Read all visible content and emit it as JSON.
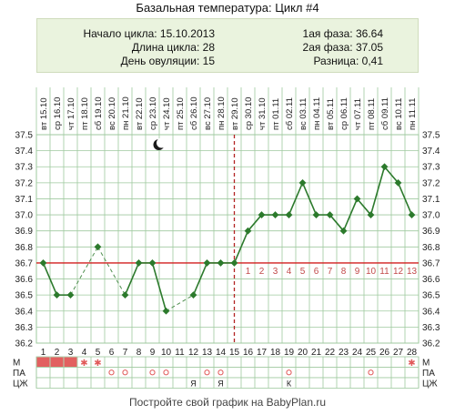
{
  "title": "Базальная температура: Цикл #4",
  "info": {
    "cycle_start": "Начало цикла: 15.10.2013",
    "cycle_length": "Длина цикла: 28",
    "ovulation_day": "День овуляции: 15",
    "phase1": "1ая фаза: 36.64",
    "phase2": "2ая фаза: 37.05",
    "difference": "Разница: 0,41"
  },
  "footer": "Постройте свой график на BabyPlan.ru",
  "chart_data": {
    "type": "line",
    "x": [
      1,
      2,
      3,
      4,
      5,
      6,
      7,
      8,
      9,
      10,
      11,
      12,
      13,
      14,
      15,
      16,
      17,
      18,
      19,
      20,
      21,
      22,
      23,
      24,
      25,
      26,
      27,
      28
    ],
    "dates": [
      "вт 15.10",
      "ср 16.10",
      "чт 17.10",
      "пт 18.10",
      "сб 19.10",
      "вс 20.10",
      "пн 21.10",
      "вт 22.10",
      "ср 23.10",
      "чт 24.10",
      "пт 25.10",
      "сб 26.10",
      "вс 27.10",
      "пн 28.10",
      "вт 29.10",
      "ср 30.10",
      "чт 31.10",
      "пт 01.11",
      "сб 02.11",
      "вс 03.11",
      "пн 04.11",
      "вт 05.11",
      "ср 06.11",
      "чт 07.11",
      "пт 08.11",
      "сб 09.11",
      "вс 10.11",
      "пн 11.11"
    ],
    "temperatures": [
      36.7,
      36.5,
      36.5,
      null,
      36.8,
      null,
      36.5,
      36.7,
      36.7,
      36.4,
      null,
      36.5,
      36.7,
      36.7,
      36.7,
      36.9,
      37.0,
      37.0,
      37.0,
      37.2,
      37.0,
      37.0,
      36.9,
      37.1,
      37.0,
      37.3,
      37.2,
      37.0
    ],
    "ylim": [
      36.2,
      37.5
    ],
    "yticks": [
      "36.2",
      "36.3",
      "36.4",
      "36.5",
      "36.6",
      "36.7",
      "36.8",
      "36.9",
      "37.0",
      "37.1",
      "37.2",
      "37.3",
      "37.4",
      "37.5"
    ],
    "coverline": 36.7,
    "ovulation_day": 15,
    "post_ovulation_labels": [
      "1",
      "2",
      "3",
      "4",
      "5",
      "6",
      "7",
      "8",
      "9",
      "10",
      "11",
      "12",
      "13"
    ],
    "moon_icon_day": 9,
    "grid": true,
    "rows": {
      "labels": [
        "М",
        "ПА",
        "ЦЖ"
      ],
      "menstruation_days": [
        1,
        2,
        3
      ],
      "m_star_days": [
        4,
        5,
        28
      ],
      "pa_circle_days": [
        6,
        7,
        9,
        10,
        13,
        14,
        19,
        25
      ],
      "czh_marks": [
        {
          "day": 12,
          "text": "Я"
        },
        {
          "day": 14,
          "text": "Я"
        },
        {
          "day": 19,
          "text": "К"
        }
      ]
    },
    "colors": {
      "series": "#2c7a2c",
      "dashed_gap": "#4f8f4f",
      "coverline": "#d21f1f",
      "ovulation": "#b22222",
      "grid": "#9fc99f",
      "menstruation": "#e26060",
      "marker_red": "#e15a5a",
      "phase_labels": "#c24b4b"
    }
  }
}
